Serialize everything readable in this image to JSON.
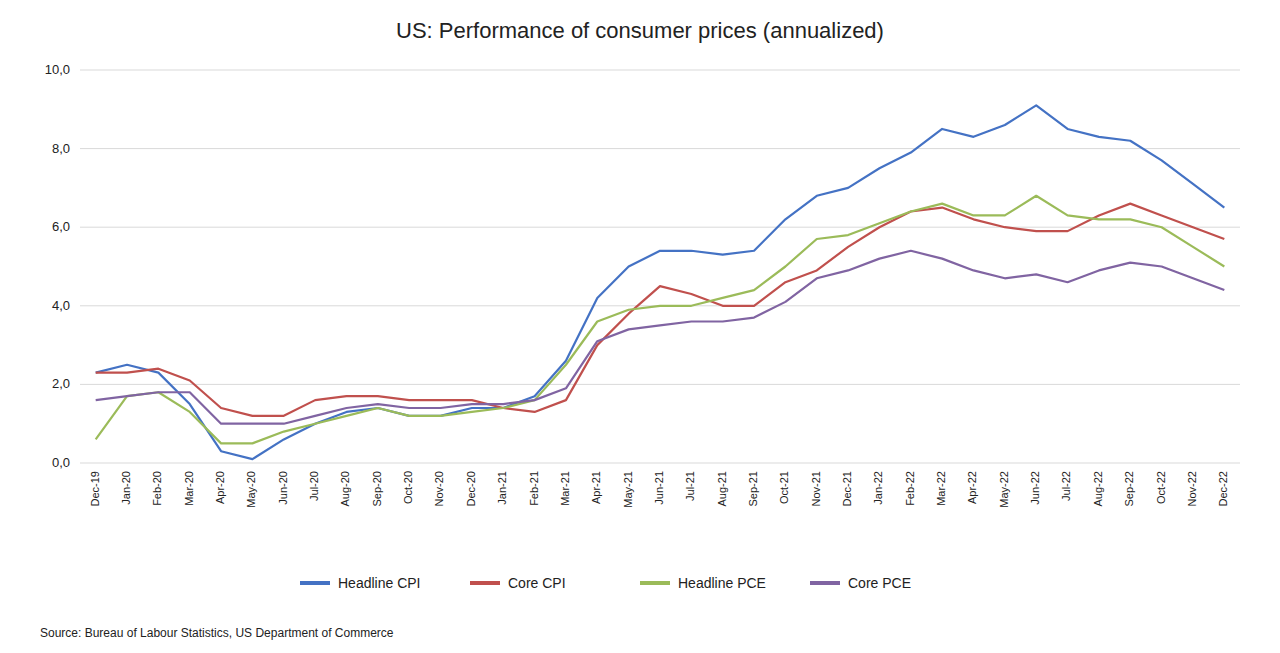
{
  "chart_data": {
    "type": "line",
    "title": "US: Performance of consumer prices (annualized)",
    "source": "Source: Bureau of Labour Statistics, US Department of Commerce",
    "categories": [
      "Dec-19",
      "Jan-20",
      "Feb-20",
      "Mar-20",
      "Apr-20",
      "May-20",
      "Jun-20",
      "Jul-20",
      "Aug-20",
      "Sep-20",
      "Oct-20",
      "Nov-20",
      "Dec-20",
      "Jan-21",
      "Feb-21",
      "Mar-21",
      "Apr-21",
      "May-21",
      "Jun-21",
      "Jul-21",
      "Aug-21",
      "Sep-21",
      "Oct-21",
      "Nov-21",
      "Dec-21",
      "Jan-22",
      "Feb-22",
      "Mar-22",
      "Apr-22",
      "May-22",
      "Jun-22",
      "Jul-22",
      "Aug-22",
      "Sep-22",
      "Oct-22",
      "Nov-22",
      "Dec-22"
    ],
    "series": [
      {
        "name": "Headline CPI",
        "color": "#4472C4",
        "values": [
          2.3,
          2.5,
          2.3,
          1.5,
          0.3,
          0.1,
          0.6,
          1.0,
          1.3,
          1.4,
          1.2,
          1.2,
          1.4,
          1.4,
          1.7,
          2.6,
          4.2,
          5.0,
          5.4,
          5.4,
          5.3,
          5.4,
          6.2,
          6.8,
          7.0,
          7.5,
          7.9,
          8.5,
          8.3,
          8.6,
          9.1,
          8.5,
          8.3,
          8.2,
          7.7,
          7.1,
          6.5
        ]
      },
      {
        "name": "Core CPI",
        "color": "#C0504D",
        "values": [
          2.3,
          2.3,
          2.4,
          2.1,
          1.4,
          1.2,
          1.2,
          1.6,
          1.7,
          1.7,
          1.6,
          1.6,
          1.6,
          1.4,
          1.3,
          1.6,
          3.0,
          3.8,
          4.5,
          4.3,
          4.0,
          4.0,
          4.6,
          4.9,
          5.5,
          6.0,
          6.4,
          6.5,
          6.2,
          6.0,
          5.9,
          5.9,
          6.3,
          6.6,
          6.3,
          6.0,
          5.7
        ]
      },
      {
        "name": "Headline PCE",
        "color": "#9BBB59",
        "values": [
          0.6,
          1.7,
          1.8,
          1.3,
          0.5,
          0.5,
          0.8,
          1.0,
          1.2,
          1.4,
          1.2,
          1.2,
          1.3,
          1.4,
          1.6,
          2.5,
          3.6,
          3.9,
          4.0,
          4.0,
          4.2,
          4.4,
          5.0,
          5.7,
          5.8,
          6.1,
          6.4,
          6.6,
          6.3,
          6.3,
          6.8,
          6.3,
          6.2,
          6.2,
          6.0,
          5.5,
          5.0
        ]
      },
      {
        "name": "Core PCE",
        "color": "#8064A2",
        "values": [
          1.6,
          1.7,
          1.8,
          1.8,
          1.0,
          1.0,
          1.0,
          1.2,
          1.4,
          1.5,
          1.4,
          1.4,
          1.5,
          1.5,
          1.6,
          1.9,
          3.1,
          3.4,
          3.5,
          3.6,
          3.6,
          3.7,
          4.1,
          4.7,
          4.9,
          5.2,
          5.4,
          5.2,
          4.9,
          4.7,
          4.8,
          4.6,
          4.9,
          5.1,
          5.0,
          4.7,
          4.4
        ]
      }
    ],
    "ylim": [
      0.0,
      10.0
    ],
    "yticks": [
      {
        "value": 0.0,
        "label": "0,0"
      },
      {
        "value": 2.0,
        "label": "2,0"
      },
      {
        "value": 4.0,
        "label": "4,0"
      },
      {
        "value": 6.0,
        "label": "6,0"
      },
      {
        "value": 8.0,
        "label": "8,0"
      },
      {
        "value": 10.0,
        "label": "10,0"
      }
    ],
    "grid": true,
    "legend": "bottom"
  }
}
